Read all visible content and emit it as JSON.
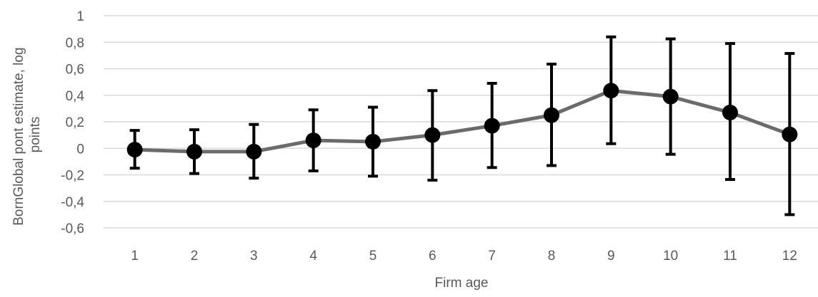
{
  "chart_data": {
    "type": "line",
    "title": "",
    "xlabel": "Firm age",
    "ylabel_lines": [
      "BornGlobal pont estimate, log",
      "points"
    ],
    "categories": [
      "1",
      "2",
      "3",
      "4",
      "5",
      "6",
      "7",
      "8",
      "9",
      "10",
      "11",
      "12"
    ],
    "ylim": [
      -0.6,
      1.0
    ],
    "yticks": [
      -0.6,
      -0.4,
      -0.2,
      0,
      0.2,
      0.4,
      0.6,
      0.8,
      1
    ],
    "ytick_labels": [
      "-0,6",
      "-0,4",
      "-0,2",
      "0",
      "0,2",
      "0,4",
      "0,6",
      "0,8",
      "1"
    ],
    "grid": true,
    "series": [
      {
        "values": [
          -0.01,
          -0.025,
          -0.025,
          0.06,
          0.05,
          0.1,
          0.17,
          0.25,
          0.435,
          0.39,
          0.27,
          0.105
        ],
        "error_low": [
          -0.15,
          -0.19,
          -0.225,
          -0.17,
          -0.21,
          -0.24,
          -0.145,
          -0.13,
          0.035,
          -0.045,
          -0.235,
          -0.5
        ],
        "error_high": [
          0.135,
          0.14,
          0.18,
          0.29,
          0.31,
          0.435,
          0.49,
          0.635,
          0.84,
          0.825,
          0.79,
          0.715
        ]
      }
    ],
    "colors": {
      "line": "#6b6b6b",
      "marker": "#000000",
      "grid": "#d9d9d9",
      "text": "#595959"
    }
  }
}
